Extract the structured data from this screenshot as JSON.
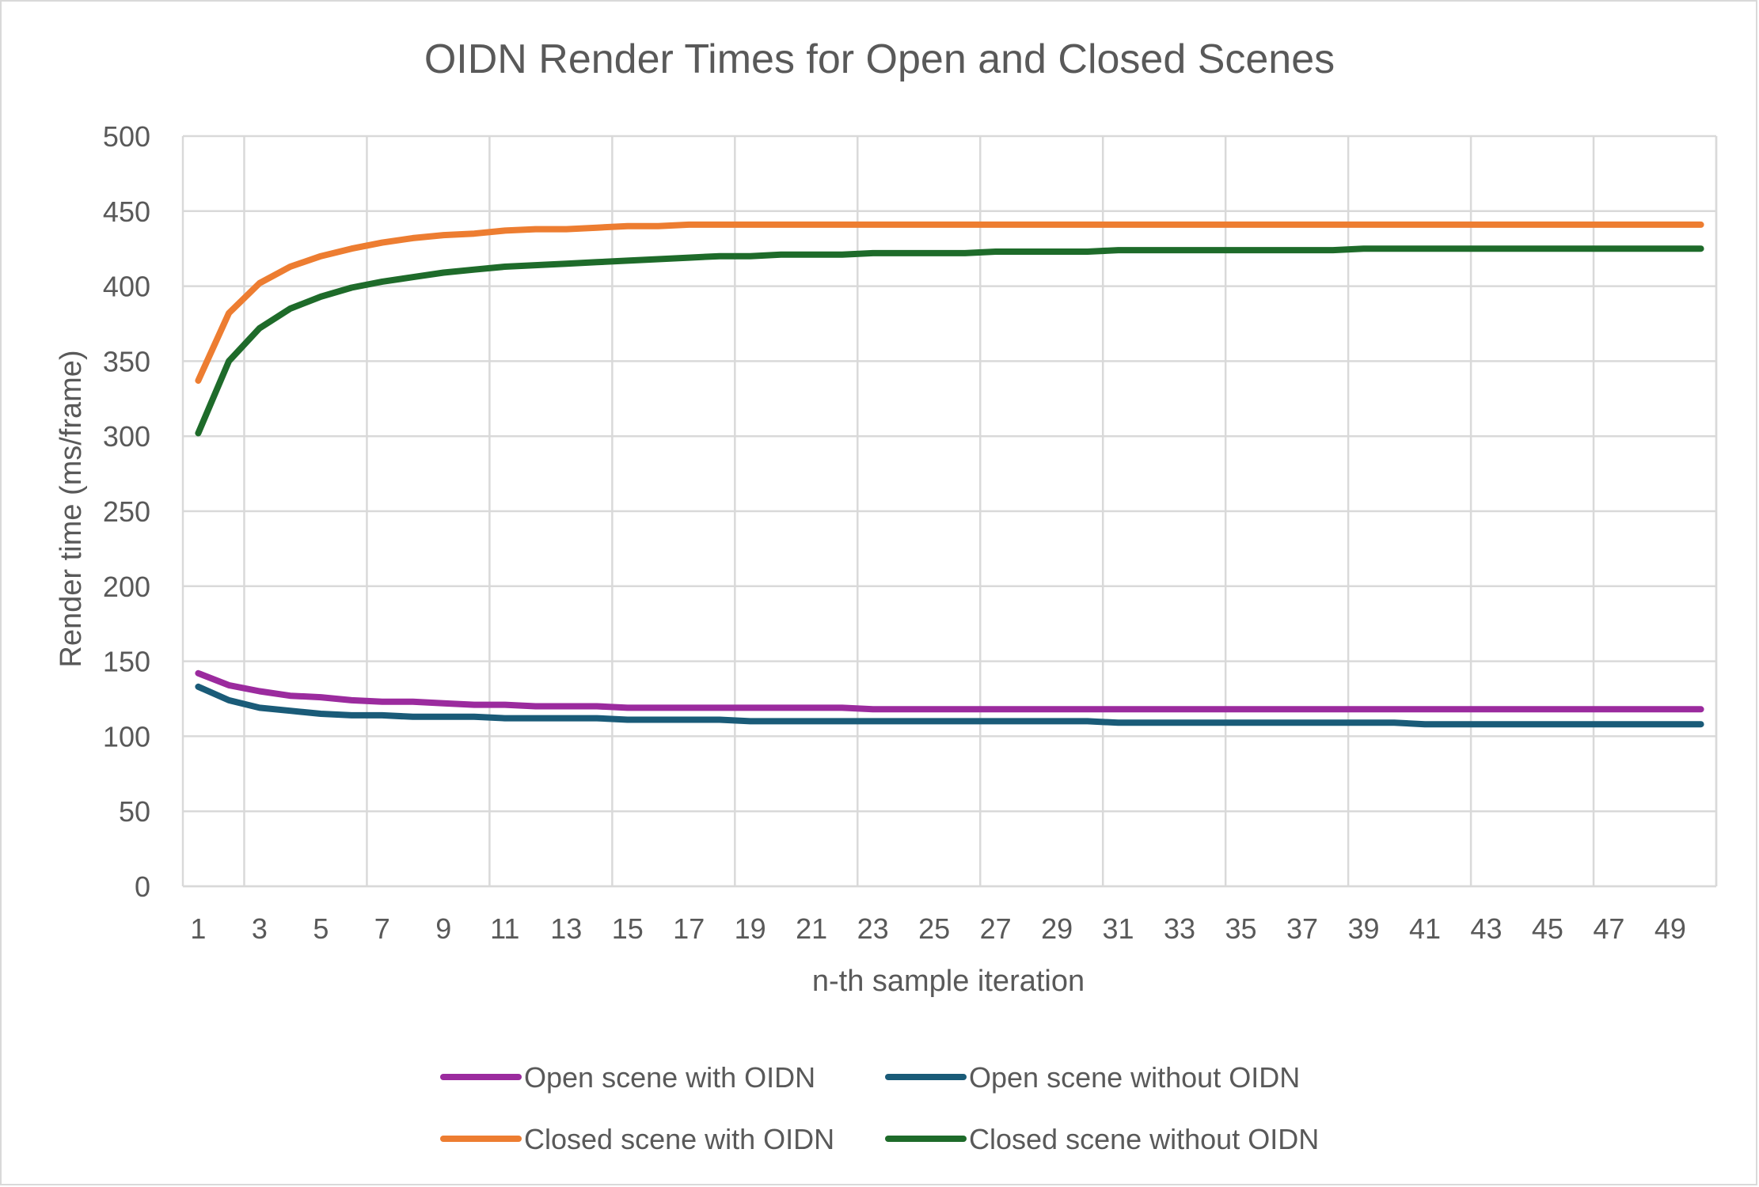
{
  "chart_data": {
    "type": "line",
    "title": "OIDN Render Times for Open and Closed Scenes",
    "xlabel": "n-th sample iteration",
    "ylabel": "Render time (ms/frame)",
    "ylim": [
      0,
      500
    ],
    "yticks": [
      0,
      50,
      100,
      150,
      200,
      250,
      300,
      350,
      400,
      450,
      500
    ],
    "xticks": [
      "1",
      "3",
      "5",
      "7",
      "9",
      "11",
      "13",
      "15",
      "17",
      "19",
      "21",
      "23",
      "25",
      "27",
      "29",
      "31",
      "33",
      "35",
      "37",
      "39",
      "41",
      "43",
      "45",
      "47",
      "49"
    ],
    "x": [
      1,
      2,
      3,
      4,
      5,
      6,
      7,
      8,
      9,
      10,
      11,
      12,
      13,
      14,
      15,
      16,
      17,
      18,
      19,
      20,
      21,
      22,
      23,
      24,
      25,
      26,
      27,
      28,
      29,
      30,
      31,
      32,
      33,
      34,
      35,
      36,
      37,
      38,
      39,
      40,
      41,
      42,
      43,
      44,
      45,
      46,
      47,
      48,
      49,
      50
    ],
    "grid": true,
    "legend_position": "bottom",
    "series": [
      {
        "name": "Open scene with OIDN",
        "color": "#9b2b9e",
        "values": [
          142,
          134,
          130,
          127,
          126,
          124,
          123,
          123,
          122,
          121,
          121,
          120,
          120,
          120,
          119,
          119,
          119,
          119,
          119,
          119,
          119,
          119,
          118,
          118,
          118,
          118,
          118,
          118,
          118,
          118,
          118,
          118,
          118,
          118,
          118,
          118,
          118,
          118,
          118,
          118,
          118,
          118,
          118,
          118,
          118,
          118,
          118,
          118,
          118,
          118
        ]
      },
      {
        "name": "Open scene without OIDN",
        "color": "#1a5b78",
        "values": [
          133,
          124,
          119,
          117,
          115,
          114,
          114,
          113,
          113,
          113,
          112,
          112,
          112,
          112,
          111,
          111,
          111,
          111,
          110,
          110,
          110,
          110,
          110,
          110,
          110,
          110,
          110,
          110,
          110,
          110,
          109,
          109,
          109,
          109,
          109,
          109,
          109,
          109,
          109,
          109,
          108,
          108,
          108,
          108,
          108,
          108,
          108,
          108,
          108,
          108
        ]
      },
      {
        "name": "Closed scene with OIDN",
        "color": "#ed7d31",
        "values": [
          337,
          382,
          402,
          413,
          420,
          425,
          429,
          432,
          434,
          435,
          437,
          438,
          438,
          439,
          440,
          440,
          441,
          441,
          441,
          441,
          441,
          441,
          441,
          441,
          441,
          441,
          441,
          441,
          441,
          441,
          441,
          441,
          441,
          441,
          441,
          441,
          441,
          441,
          441,
          441,
          441,
          441,
          441,
          441,
          441,
          441,
          441,
          441,
          441,
          441
        ]
      },
      {
        "name": "Closed scene without OIDN",
        "color": "#1e6b2a",
        "values": [
          302,
          350,
          372,
          385,
          393,
          399,
          403,
          406,
          409,
          411,
          413,
          414,
          415,
          416,
          417,
          418,
          419,
          420,
          420,
          421,
          421,
          421,
          422,
          422,
          422,
          422,
          423,
          423,
          423,
          423,
          424,
          424,
          424,
          424,
          424,
          424,
          424,
          424,
          425,
          425,
          425,
          425,
          425,
          425,
          425,
          425,
          425,
          425,
          425,
          425
        ]
      }
    ]
  }
}
